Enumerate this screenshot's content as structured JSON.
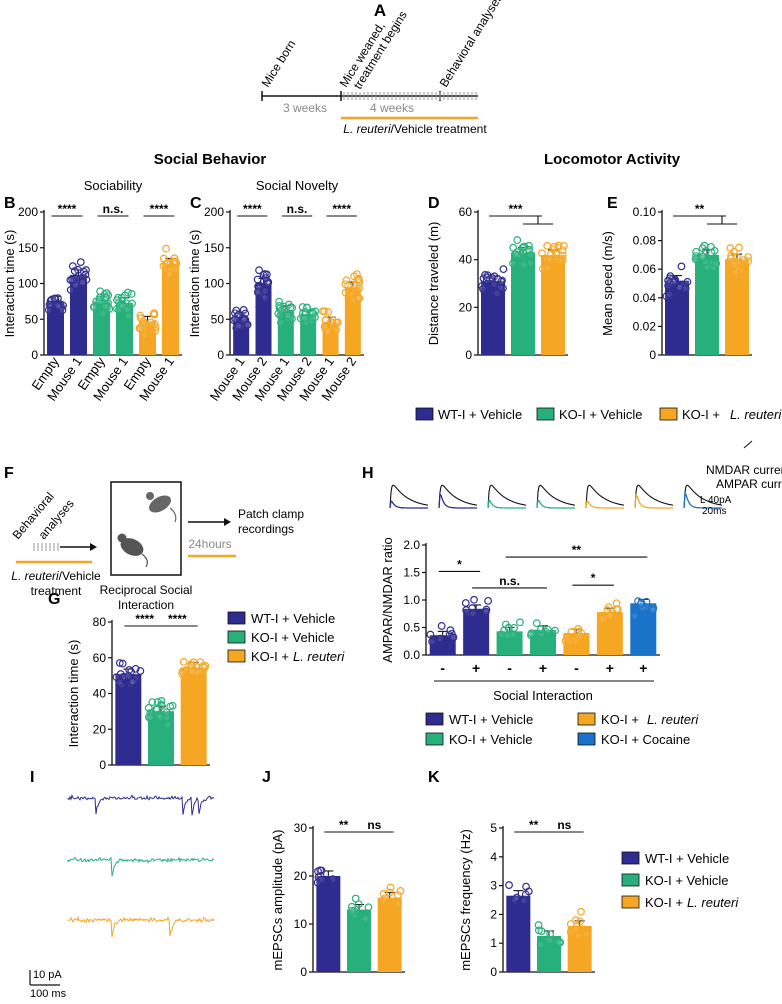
{
  "colors": {
    "wt": "#2f2c8f",
    "ko": "#27b07b",
    "lr": "#f5a623",
    "cocaine": "#1a73c9",
    "dark": "#111111",
    "grey": "#8a8a8a"
  },
  "panelA": {
    "label": "A",
    "events": [
      "Mice born",
      "Mice weaned,",
      "treatment begins",
      "Behavioral analyses"
    ],
    "durations": [
      "3 weeks",
      "4 weeks"
    ],
    "treatment_italic": "L. reuteri",
    "treatment_rest": "/Vehicle treatment"
  },
  "headings": {
    "social": "Social Behavior",
    "locomotor": "Locomotor Activity"
  },
  "legend": {
    "wt": "WT-I + Vehicle",
    "ko": "KO-I + Vehicle",
    "lr_prefix": "KO-I +",
    "lr_italic": "L. reuteri",
    "cocaine": "KO-I + Cocaine"
  },
  "chart_data": [
    {
      "id": "B",
      "type": "bar",
      "title": "Sociability",
      "ylabel": "Interaction time (s)",
      "ylim": [
        0,
        200
      ],
      "yticks": [
        "0",
        "50",
        "100",
        "150",
        "200"
      ],
      "categories": [
        "Empty",
        "Mouse 1",
        "Empty",
        "Mouse 1",
        "Empty",
        "Mouse 1"
      ],
      "groups": [
        "wt",
        "wt",
        "ko",
        "ko",
        "lr",
        "lr"
      ],
      "values": [
        75,
        112,
        75,
        73,
        47,
        128
      ],
      "annotations": [
        {
          "text": "****",
          "i": 0,
          "j": 1
        },
        {
          "text": "n.s.",
          "i": 2,
          "j": 3
        },
        {
          "text": "****",
          "i": 4,
          "j": 5
        }
      ]
    },
    {
      "id": "C",
      "type": "bar",
      "title": "Social Novelty",
      "ylabel": "Interaction time (s)",
      "ylim": [
        0,
        200
      ],
      "yticks": [
        "0",
        "50",
        "100",
        "150",
        "200"
      ],
      "categories": [
        "Mouse 1",
        "Mouse 2",
        "Mouse 1",
        "Mouse 2",
        "Mouse 1",
        "Mouse 2"
      ],
      "groups": [
        "wt",
        "wt",
        "ko",
        "ko",
        "lr",
        "lr"
      ],
      "values": [
        52,
        100,
        62,
        55,
        46,
        95
      ],
      "annotations": [
        {
          "text": "****",
          "i": 0,
          "j": 1
        },
        {
          "text": "n.s.",
          "i": 2,
          "j": 3
        },
        {
          "text": "****",
          "i": 4,
          "j": 5
        }
      ]
    },
    {
      "id": "D",
      "type": "bar",
      "title": "",
      "ylabel": "Distance traveled (m)",
      "ylim": [
        0,
        60
      ],
      "yticks": [
        "0",
        "20",
        "40",
        "60"
      ],
      "categories": [
        "",
        "",
        ""
      ],
      "groups": [
        "wt",
        "ko",
        "lr"
      ],
      "values": [
        31,
        43,
        42
      ],
      "annotations": [
        {
          "text": "***",
          "i": 0,
          "j": 1.5
        }
      ]
    },
    {
      "id": "E",
      "type": "bar",
      "title": "",
      "ylabel": "Mean speed (m/s)",
      "ylim": [
        0,
        0.1
      ],
      "yticks": [
        "0",
        "0.02",
        "0.04",
        "0.06",
        "0.08",
        "0.10"
      ],
      "categories": [
        "",
        "",
        ""
      ],
      "groups": [
        "wt",
        "ko",
        "lr"
      ],
      "values": [
        0.052,
        0.07,
        0.067
      ],
      "annotations": [
        {
          "text": "**",
          "i": 0,
          "j": 1.5
        }
      ]
    },
    {
      "id": "G",
      "type": "bar",
      "title": "",
      "ylabel": "Interaction time (s)",
      "ylim": [
        0,
        85
      ],
      "yticks": [
        "0",
        "20",
        "40",
        "60",
        "80"
      ],
      "categories": [
        "",
        "",
        ""
      ],
      "groups": [
        "wt",
        "ko",
        "lr"
      ],
      "values": [
        54,
        32,
        58
      ],
      "annotations": [
        {
          "text": "****",
          "i": 0,
          "j": 1
        },
        {
          "text": "****",
          "i": 1,
          "j": 2
        }
      ]
    },
    {
      "id": "H",
      "type": "bar",
      "title": "",
      "ylabel": "AMPAR/NMDAR ratio",
      "ylim": [
        0,
        2
      ],
      "yticks": [
        "0.0",
        "0.5",
        "1.0",
        "1.5",
        "2.0"
      ],
      "categories": [
        "-",
        "+",
        "-",
        "+",
        "-",
        "+",
        "+"
      ],
      "groups": [
        "wt",
        "wt",
        "ko",
        "ko",
        "lr",
        "lr",
        "cocaine"
      ],
      "values": [
        0.36,
        0.84,
        0.43,
        0.46,
        0.4,
        0.78,
        0.94
      ],
      "xlabel": "Social Interaction",
      "annotations": [
        {
          "text": "*",
          "i": 0,
          "j": 1
        },
        {
          "text": "n.s.",
          "i": 1,
          "j": 3
        },
        {
          "text": "*",
          "i": 4,
          "j": 5
        },
        {
          "text": "**",
          "i": 2,
          "j": 6
        }
      ]
    },
    {
      "id": "J",
      "type": "bar",
      "title": "",
      "ylabel": "mEPSCs amplitude (pA)",
      "ylim": [
        0,
        30
      ],
      "yticks": [
        "0",
        "10",
        "20",
        "30"
      ],
      "categories": [
        "",
        "",
        ""
      ],
      "groups": [
        "wt",
        "ko",
        "lr"
      ],
      "values": [
        20,
        13,
        15.5
      ],
      "annotations": [
        {
          "text": "**",
          "i": 0,
          "j": 1
        },
        {
          "text": "ns",
          "i": 1,
          "j": 2
        }
      ]
    },
    {
      "id": "K",
      "type": "bar",
      "title": "",
      "ylabel": "mEPSCs frequency (Hz)",
      "ylim": [
        0,
        5
      ],
      "yticks": [
        "0",
        "1",
        "2",
        "3",
        "4",
        "5"
      ],
      "categories": [
        "",
        "",
        ""
      ],
      "groups": [
        "wt",
        "ko",
        "lr"
      ],
      "values": [
        2.65,
        1.25,
        1.6
      ],
      "annotations": [
        {
          "text": "**",
          "i": 0,
          "j": 1
        },
        {
          "text": "ns",
          "i": 1,
          "j": 2
        }
      ]
    }
  ],
  "panelF": {
    "label": "F",
    "behav1": "Behavioral",
    "behav2": "analyses",
    "treat_italic": "L. reuteri",
    "treat_rest": "/Vehicle",
    "treat2": "treatment",
    "recip1": "Reciprocal Social",
    "recip2": "Interaction",
    "hours": "24hours",
    "patch1": "Patch clamp",
    "patch2": "recordings"
  },
  "panelH": {
    "label": "H",
    "nmda": "NMDAR current",
    "ampa": "AMPAR current",
    "scale1": "L 40pA",
    "scale2": "20ms"
  },
  "panelI": {
    "label": "I",
    "scale_pa": "10 pA",
    "scale_ms": "100 ms"
  }
}
